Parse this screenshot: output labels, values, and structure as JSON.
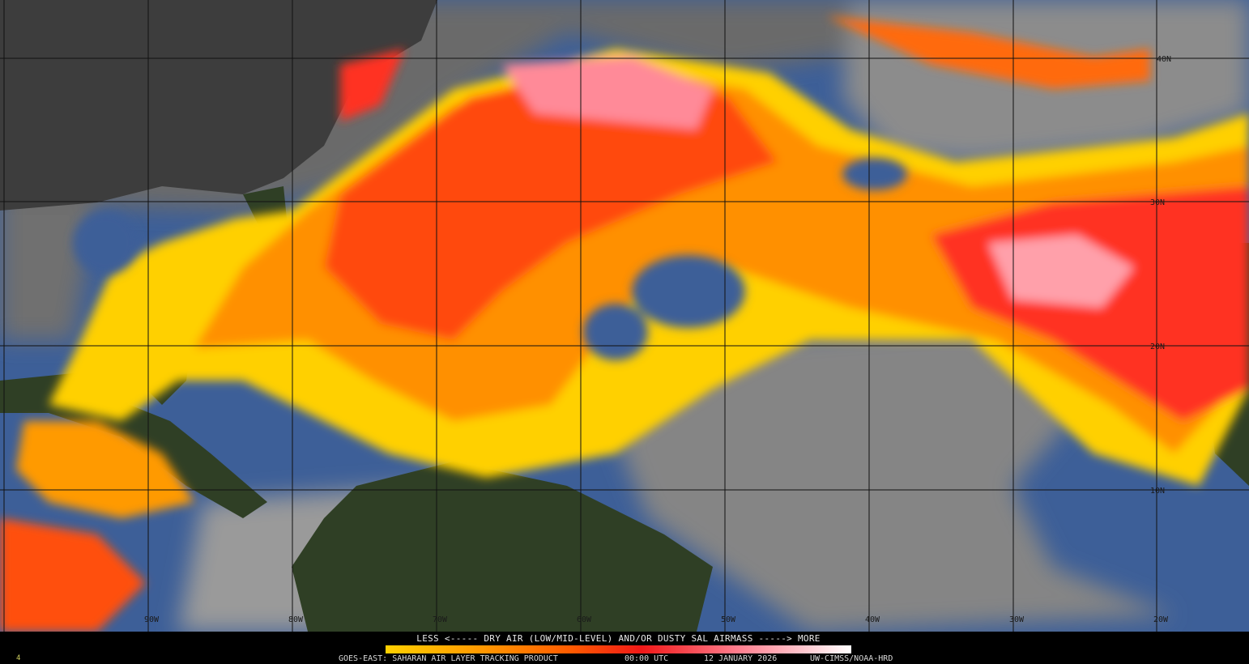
{
  "legend": {
    "title": "LESS <----- DRY AIR (LOW/MID-LEVEL) AND/OR DUSTY SAL AIRMASS -----> MORE",
    "colors": [
      "#ffd000",
      "#ff9a00",
      "#ff5a00",
      "#f01818",
      "#ff7a8a",
      "#ffc8d0",
      "#ffffff"
    ]
  },
  "footer": {
    "product": "GOES-EAST: SAHARAN AIR LAYER TRACKING PRODUCT",
    "time": "00:00 UTC",
    "date": "12 JANUARY 2026",
    "credit": "UW-CIMSS/NOAA-HRD",
    "frame": "4"
  },
  "grid": {
    "longitudes": [
      "90W",
      "80W",
      "70W",
      "60W",
      "50W",
      "40W",
      "30W",
      "20W"
    ],
    "latitudes": [
      "40N",
      "30N",
      "20N",
      "10N"
    ]
  },
  "colors": {
    "ocean": "#3d5f98",
    "land": "#2c3d1c",
    "cloud": "#9a9a9a"
  }
}
